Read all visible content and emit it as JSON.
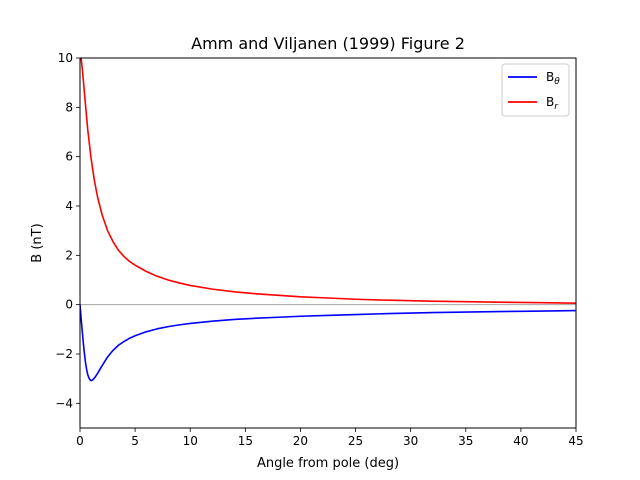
{
  "chart_data": {
    "type": "line",
    "title": "Amm and Viljanen (1999) Figure 2",
    "xlabel": "Angle from pole (deg)",
    "ylabel": "B (nT)",
    "xlim": [
      0,
      45
    ],
    "ylim": [
      -5,
      10
    ],
    "xticks": [
      0,
      5,
      10,
      15,
      20,
      25,
      30,
      35,
      40,
      45
    ],
    "yticks": [
      -4,
      -2,
      0,
      2,
      4,
      6,
      8,
      10
    ],
    "grid": false,
    "zero_line": true,
    "legend_position": "top-right",
    "series": [
      {
        "name": "B_theta",
        "legend_base": "B",
        "legend_sub": "θ",
        "color": "#0000ff",
        "x": [
          0,
          0.1,
          0.2,
          0.3,
          0.4,
          0.5,
          0.6,
          0.7,
          0.8,
          0.9,
          1.0,
          1.1,
          1.2,
          1.4,
          1.6,
          1.8,
          2.0,
          2.5,
          3.0,
          3.5,
          4.0,
          4.5,
          5.0,
          6.0,
          7.0,
          8.0,
          9.0,
          10,
          12,
          14,
          16,
          18,
          20,
          22,
          25,
          28,
          30,
          32,
          35,
          38,
          40,
          42,
          45
        ],
        "y": [
          0,
          -0.55,
          -1.05,
          -1.55,
          -1.98,
          -2.35,
          -2.62,
          -2.83,
          -2.96,
          -3.04,
          -3.08,
          -3.07,
          -3.03,
          -2.92,
          -2.78,
          -2.63,
          -2.48,
          -2.12,
          -1.85,
          -1.64,
          -1.49,
          -1.36,
          -1.26,
          -1.1,
          -0.98,
          -0.89,
          -0.82,
          -0.76,
          -0.67,
          -0.6,
          -0.55,
          -0.51,
          -0.47,
          -0.44,
          -0.4,
          -0.36,
          -0.34,
          -0.32,
          -0.3,
          -0.28,
          -0.27,
          -0.26,
          -0.24
        ]
      },
      {
        "name": "B_r",
        "legend_base": "B",
        "legend_sub": "r",
        "color": "#ff0000",
        "x": [
          0,
          0.1,
          0.2,
          0.3,
          0.5,
          0.7,
          1.0,
          1.3,
          1.6,
          2.0,
          2.5,
          3.0,
          3.5,
          4.0,
          4.5,
          5.0,
          6.0,
          7.0,
          8.0,
          9.0,
          10,
          12,
          14,
          16,
          18,
          20,
          22,
          25,
          28,
          30,
          32,
          35,
          38,
          40,
          42,
          45
        ],
        "y": [
          10.2,
          10.0,
          9.6,
          9.1,
          8.1,
          7.1,
          5.95,
          5.05,
          4.35,
          3.65,
          3.0,
          2.55,
          2.2,
          1.95,
          1.75,
          1.6,
          1.35,
          1.15,
          1.0,
          0.88,
          0.78,
          0.63,
          0.52,
          0.44,
          0.38,
          0.32,
          0.28,
          0.22,
          0.18,
          0.16,
          0.14,
          0.12,
          0.1,
          0.09,
          0.08,
          0.06
        ]
      }
    ]
  }
}
